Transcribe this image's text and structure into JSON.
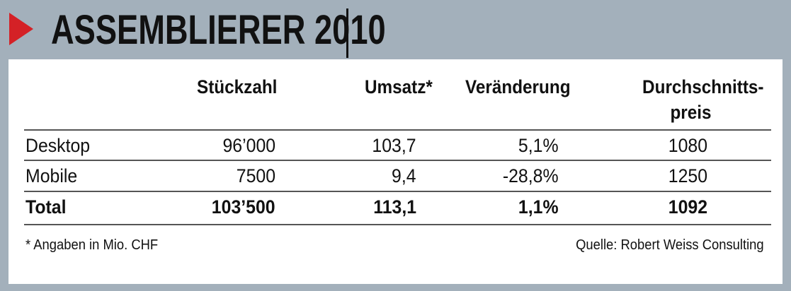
{
  "title": "ASSEMBLIERER 2010",
  "chart_data": {
    "type": "table",
    "title": "ASSEMBLIERER 2010",
    "columns": [
      "",
      "Stückzahl",
      "Umsatz*",
      "Veränderung",
      "Durchschnitts-preis"
    ],
    "header": {
      "col1": "Stückzahl",
      "col2": "Umsatz*",
      "col3": "Veränderung",
      "col4_line1": "Durchschnitts-",
      "col4_line2": "preis"
    },
    "rows": [
      {
        "label": "Desktop",
        "stueckzahl": "96’000",
        "umsatz": "103,7",
        "veraenderung": "5,1%",
        "preis": "1080"
      },
      {
        "label": "Mobile",
        "stueckzahl": "7500",
        "umsatz": "9,4",
        "veraenderung": "-28,8%",
        "preis": "1250"
      },
      {
        "label": "Total",
        "stueckzahl": "103’500",
        "umsatz": "113,1",
        "veraenderung": "1,1%",
        "preis": "1092"
      }
    ],
    "footnote": "* Angaben in Mio. CHF",
    "source": "Quelle: Robert Weiss Consulting"
  },
  "colors": {
    "frame": "#a3b0bb",
    "accent": "#d42126"
  }
}
